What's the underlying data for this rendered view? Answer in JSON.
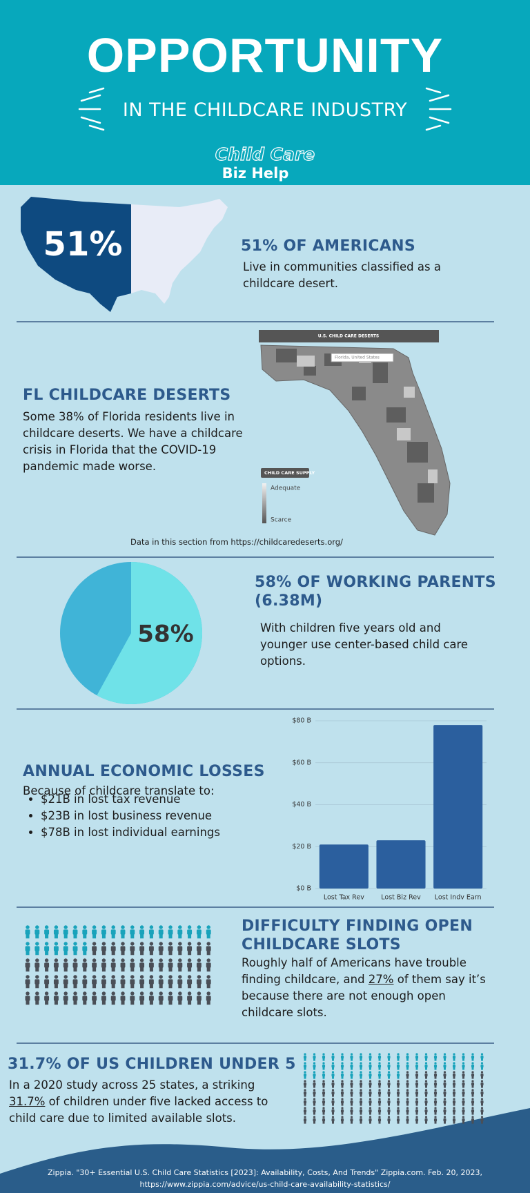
{
  "header": {
    "title": "OPPORTUNITY",
    "subtitle": "IN THE CHILDCARE INDUSTRY",
    "logo_line1": "Child Care",
    "logo_line2": "Biz Help"
  },
  "americans": {
    "map_label": "51%",
    "heading": "51% OF AMERICANS",
    "body": "Live in communities classified as a childcare desert."
  },
  "florida": {
    "heading": "FL CHILDCARE DESERTS",
    "body": "Some 38% of Florida residents live in childcare deserts. We have a childcare crisis in Florida that the COVID-19 pandemic made worse.",
    "map_title": "U.S. CHILD CARE DESERTS",
    "search": "Florida, United States",
    "legend_title": "CHILD CARE SUPPLY",
    "legend_high": "Adequate",
    "legend_low": "Scarce",
    "source": "Data in this section from https://childcaredeserts.org/"
  },
  "parents": {
    "heading": "58% OF WORKING PARENTS (6.38M)",
    "body": "With children five years old and younger use center-based child care options."
  },
  "losses": {
    "heading": "ANNUAL ECONOMIC LOSSES",
    "intro": "Because of childcare translate to:",
    "items": [
      "$21B in lost tax revenue",
      "$23B in lost business revenue",
      "$78B in lost individual earnings"
    ]
  },
  "slots": {
    "heading": "DIFFICULTY FINDING OPEN CHILDCARE SLOTS",
    "body_parts": [
      "Roughly half of Americans have trouble finding childcare, and ",
      "27%",
      " of them say it’s because there are not enough open childcare slots."
    ]
  },
  "children": {
    "heading": "31.7% OF US CHILDREN UNDER 5",
    "body_parts": [
      "In a 2020 study across 25 states, a striking ",
      "31.7%",
      " of children under five lacked access to child care due to limited available slots."
    ]
  },
  "footer": {
    "lines": [
      "Zippia. \"30+ Essential U.S. Child Care Statistics [2023]: Availability, Costs, And Trends\" Zippia.com. Feb. 20, 2023,",
      "https://www.zippia.com/advice/us-child-care-availability-statistics/"
    ]
  },
  "chart_data": [
    {
      "type": "pie",
      "values": [
        58
      ],
      "value_labels": [
        "58%"
      ],
      "colors": [
        "#6fe2e8"
      ],
      "background_color": "#40b4d7"
    },
    {
      "type": "bar",
      "categories": [
        "Lost Tax Rev",
        "Lost Biz Rev",
        "Lost Indv Earn"
      ],
      "values": [
        21,
        23,
        78
      ],
      "color": "#2b5f9e",
      "ylim": [
        0,
        80
      ],
      "yticks": [
        {
          "value": 0,
          "label": "$0 B"
        },
        {
          "value": 20,
          "label": "$20 B"
        },
        {
          "value": 40,
          "label": "$40 B"
        },
        {
          "value": 60,
          "label": "$60 B"
        },
        {
          "value": 80,
          "label": "$80 B"
        }
      ],
      "grid": true
    }
  ]
}
